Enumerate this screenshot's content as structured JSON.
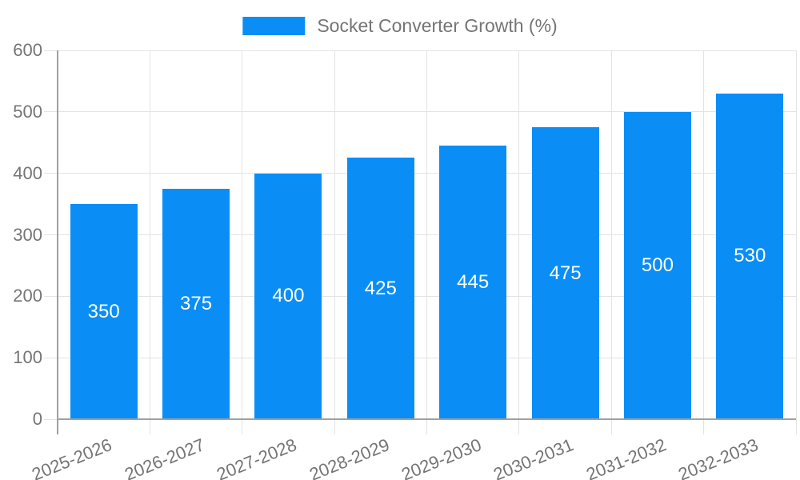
{
  "chart_data": {
    "type": "bar",
    "title": "",
    "legend": "Socket Converter Growth (%)",
    "legend_position": "top-center",
    "categories": [
      "2025-2026",
      "2026-2027",
      "2027-2028",
      "2028-2029",
      "2029-2030",
      "2030-2031",
      "2031-2032",
      "2032-2033"
    ],
    "series": [
      {
        "name": "Socket Converter Growth (%)",
        "values": [
          350,
          375,
          400,
          425,
          445,
          475,
          500,
          530
        ]
      }
    ],
    "value_labels": [
      "350",
      "375",
      "400",
      "425",
      "445",
      "475",
      "500",
      "530"
    ],
    "xlabel": "",
    "ylabel": "",
    "ylim": [
      0,
      600
    ],
    "yticks": [
      0,
      100,
      200,
      300,
      400,
      500,
      600
    ],
    "ytick_labels": [
      "0",
      "100",
      "200",
      "300",
      "400",
      "500",
      "600"
    ],
    "grid": "on",
    "colors": {
      "bar": "#0a8ef6",
      "grid": "#e3e3e3",
      "axis": "#a0a0a0",
      "axis_text": "#757575",
      "value_label": "#ffffff",
      "background": "#ffffff"
    }
  }
}
